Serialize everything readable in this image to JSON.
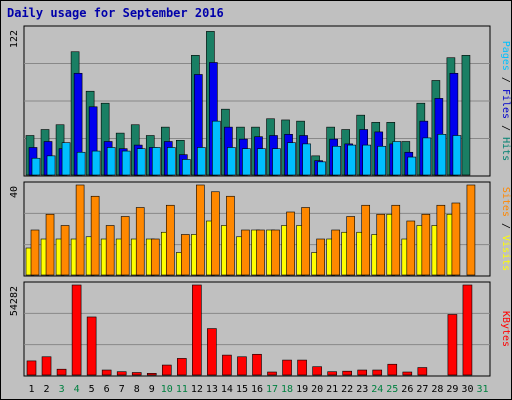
{
  "title": "Daily usage for September 2016",
  "right_labels": {
    "top": [
      {
        "text": "Pages",
        "color": "#00c0ff"
      },
      {
        "text": " / ",
        "color": "#000000"
      },
      {
        "text": "Files",
        "color": "#0000cc"
      },
      {
        "text": " / ",
        "color": "#000000"
      },
      {
        "text": "Hits",
        "color": "#008070"
      }
    ],
    "mid": [
      {
        "text": "Sites",
        "color": "#ff8800"
      },
      {
        "text": " / ",
        "color": "#000000"
      },
      {
        "text": "Visits",
        "color": "#ffff00"
      }
    ],
    "bot": [
      {
        "text": "KBytes",
        "color": "#ff0000"
      }
    ]
  },
  "colors": {
    "hits": "#1a7f64",
    "files": "#0000ee",
    "pages": "#00bfff",
    "visits": "#ffff00",
    "sites": "#ff8800",
    "kbytes": "#ff0000",
    "weekend": "#008040",
    "weekday": "#000000"
  },
  "chart_data": [
    {
      "type": "bar",
      "title": "Daily usage for September 2016",
      "ymax_label": "122",
      "ylim": [
        0,
        122
      ],
      "categories": [
        "1",
        "2",
        "3",
        "4",
        "5",
        "6",
        "7",
        "8",
        "9",
        "10",
        "11",
        "12",
        "13",
        "14",
        "15",
        "16",
        "17",
        "18",
        "19",
        "20",
        "21",
        "22",
        "23",
        "24",
        "25",
        "26",
        "27",
        "28",
        "29",
        "30",
        "31"
      ],
      "weekend_days": [
        "3",
        "4",
        "10",
        "11",
        "17",
        "18",
        "24",
        "25",
        "31"
      ],
      "series": [
        {
          "name": "Hits",
          "values": [
            33,
            38,
            42,
            103,
            70,
            60,
            35,
            42,
            33,
            40,
            29,
            100,
            120,
            55,
            40,
            40,
            47,
            46,
            45,
            16,
            40,
            38,
            50,
            44,
            44,
            28,
            60,
            79,
            98,
            100,
            0
          ]
        },
        {
          "name": "Files",
          "values": [
            23,
            28,
            22,
            85,
            57,
            28,
            22,
            25,
            23,
            28,
            17,
            84,
            94,
            40,
            30,
            32,
            33,
            34,
            33,
            12,
            30,
            26,
            38,
            36,
            26,
            19,
            45,
            64,
            85,
            0,
            0
          ]
        },
        {
          "name": "Pages",
          "values": [
            14,
            16,
            27,
            19,
            20,
            23,
            20,
            22,
            23,
            23,
            13,
            23,
            45,
            23,
            22,
            22,
            22,
            27,
            26,
            11,
            24,
            25,
            25,
            24,
            28,
            15,
            31,
            34,
            33,
            0,
            0
          ]
        }
      ]
    },
    {
      "type": "bar",
      "ymax_label": "40",
      "ylim": [
        0,
        40
      ],
      "categories": [
        "1",
        "2",
        "3",
        "4",
        "5",
        "6",
        "7",
        "8",
        "9",
        "10",
        "11",
        "12",
        "13",
        "14",
        "15",
        "16",
        "17",
        "18",
        "19",
        "20",
        "21",
        "22",
        "23",
        "24",
        "25",
        "26",
        "27",
        "28",
        "29",
        "30",
        "31"
      ],
      "series": [
        {
          "name": "Visits",
          "values": [
            12,
            16,
            16,
            16,
            17,
            16,
            16,
            16,
            16,
            19,
            10,
            18,
            24,
            22,
            17,
            20,
            20,
            22,
            22,
            10,
            16,
            19,
            19,
            18,
            27,
            16,
            22,
            22,
            27,
            0,
            0
          ]
        },
        {
          "name": "Sites",
          "values": [
            20,
            27,
            22,
            40,
            35,
            22,
            26,
            30,
            16,
            31,
            18,
            40,
            37,
            35,
            20,
            20,
            20,
            28,
            30,
            16,
            20,
            26,
            31,
            27,
            31,
            24,
            27,
            31,
            32,
            40,
            0
          ]
        }
      ]
    },
    {
      "type": "bar",
      "ymax_label": "54282",
      "ylim": [
        0,
        54282
      ],
      "categories": [
        "1",
        "2",
        "3",
        "4",
        "5",
        "6",
        "7",
        "8",
        "9",
        "10",
        "11",
        "12",
        "13",
        "14",
        "15",
        "16",
        "17",
        "18",
        "19",
        "20",
        "21",
        "22",
        "23",
        "24",
        "25",
        "26",
        "27",
        "28",
        "29",
        "30",
        "31"
      ],
      "series": [
        {
          "name": "KBytes",
          "values": [
            8500,
            11000,
            3500,
            54282,
            35000,
            3000,
            2000,
            1500,
            1000,
            6000,
            10000,
            54282,
            28000,
            12000,
            11000,
            12500,
            1800,
            9000,
            9000,
            5000,
            2000,
            2300,
            3000,
            3000,
            6500,
            1800,
            4500,
            0,
            36500,
            54282,
            0
          ]
        }
      ]
    }
  ]
}
